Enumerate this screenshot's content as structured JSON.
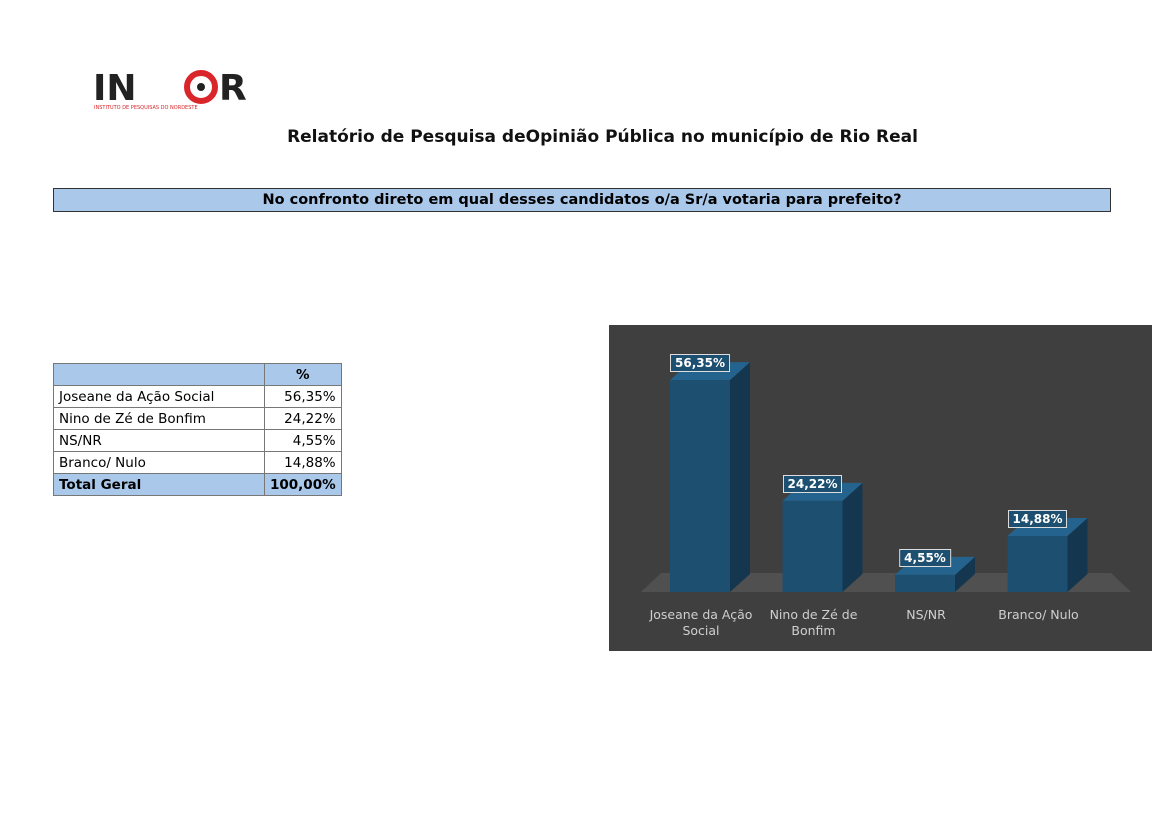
{
  "header": {
    "logo_left": "IN",
    "logo_right": "R",
    "logo_tagline": "INSTITUTO DE PESQUISAS DO NORDESTE",
    "title": "Relatório de Pesquisa deOpinião Pública no município de Rio Real"
  },
  "question": "No confronto direto em qual desses candidatos o/a Sr/a votaria para prefeito?",
  "table": {
    "header": [
      "%"
    ],
    "rows": [
      [
        "Joseane da Ação Social",
        "56,35%"
      ],
      [
        "Nino de Zé de Bonfim",
        "24,22%"
      ],
      [
        "NS/NR",
        "4,55%"
      ],
      [
        "Branco/ Nulo",
        "14,88%"
      ]
    ],
    "total": [
      "Total Geral",
      "100,00%"
    ]
  },
  "chart_data": {
    "type": "bar3d",
    "categories": [
      "Joseane da Ação Social",
      "Nino de Zé de Bonfim",
      "NS/NR",
      "Branco/ Nulo"
    ],
    "values": [
      56.35,
      24.22,
      4.55,
      14.88
    ],
    "value_labels": [
      "56,35%",
      "24,22%",
      "4,55%",
      "14,88%"
    ],
    "color": "#1d4f71"
  }
}
